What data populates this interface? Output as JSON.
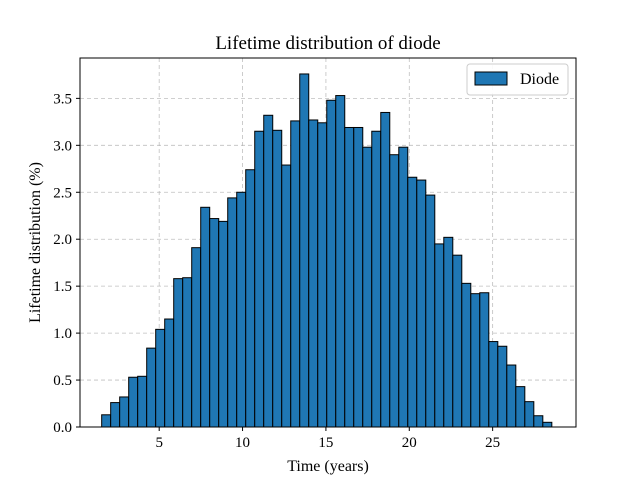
{
  "chart_data": {
    "type": "bar",
    "title": "Lifetime distribution of diode",
    "xlabel": "Time (years)",
    "ylabel": "Lifetime distribution (%)",
    "xlim": [
      0.25,
      30
    ],
    "ylim": [
      0,
      3.93
    ],
    "xticks": [
      5,
      10,
      15,
      20,
      25
    ],
    "xtick_labels": [
      "5",
      "10",
      "15",
      "20",
      "25"
    ],
    "yticks": [
      0.0,
      0.5,
      1.0,
      1.5,
      2.0,
      2.5,
      3.0,
      3.5
    ],
    "ytick_labels": [
      "0.0",
      "0.5",
      "1.0",
      "1.5",
      "2.0",
      "2.5",
      "3.0",
      "3.5"
    ],
    "grid": true,
    "legend": {
      "entries": [
        "Diode"
      ],
      "placement": "top-right"
    },
    "color": "#1f77b4",
    "edge_color": "#000000",
    "bin_start": 1.55,
    "bin_width": 0.54,
    "series": [
      {
        "name": "Diode",
        "values": [
          0.13,
          0.26,
          0.32,
          0.53,
          0.54,
          0.84,
          1.04,
          1.15,
          1.58,
          1.59,
          1.91,
          2.34,
          2.22,
          2.19,
          2.44,
          2.5,
          2.74,
          3.15,
          3.32,
          3.16,
          2.79,
          3.26,
          3.76,
          3.27,
          3.24,
          3.48,
          3.53,
          3.19,
          3.19,
          2.98,
          3.15,
          3.35,
          2.9,
          2.98,
          2.66,
          2.63,
          2.47,
          1.95,
          2.02,
          1.83,
          1.53,
          1.42,
          1.43,
          0.91,
          0.86,
          0.66,
          0.43,
          0.27,
          0.12,
          0.05
        ]
      }
    ]
  }
}
